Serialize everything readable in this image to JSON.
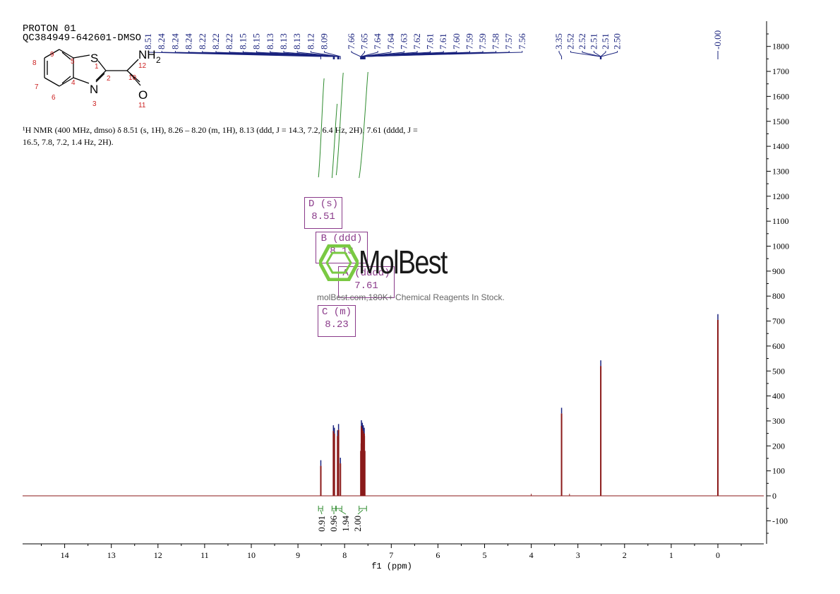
{
  "header": {
    "line1": "PROTON 01",
    "line2": "QC384949-642601-DMSO"
  },
  "description": {
    "text": "¹H NMR (400 MHz, dmso) δ 8.51 (s, 1H), 8.26 – 8.20 (m, 1H), 8.13 (ddd, J = 14.3, 7.2, 6.4 Hz, 2H), 7.61 (dddd, J = 16.5, 7.8, 7.2, 1.4 Hz, 2H)."
  },
  "molecule": {
    "atoms": [
      "S",
      "N",
      "NH",
      "2",
      "O"
    ],
    "numbers": [
      "1",
      "2",
      "3",
      "4",
      "5",
      "6",
      "7",
      "8",
      "9",
      "10",
      "11",
      "12"
    ]
  },
  "peak_boxes": [
    {
      "label": "D (s)",
      "value": "8.51"
    },
    {
      "label": "B (ddd)",
      "value": "8.13"
    },
    {
      "label": "A (dddd)",
      "value": "7.61"
    },
    {
      "label": "C (m)",
      "value": "8.23"
    }
  ],
  "watermark": {
    "brand": "MolBest",
    "tagline": "molBest.com,180K+ Chemical Reagents In Stock."
  },
  "colors": {
    "spectrum": "#8b1a1a",
    "peak_labels": "#1a237e",
    "integrals": "#2e8b2e",
    "boxes": "#8a3a8a",
    "watermark": "#1e7b3a",
    "atom_numbers": "#cc2222"
  },
  "chart_data": {
    "type": "line",
    "xlabel": "f1 (ppm)",
    "x_reversed": true,
    "xlim": [
      15,
      -1
    ],
    "ylim": [
      -150,
      1900
    ],
    "x_ticks": [
      "14",
      "13",
      "12",
      "11",
      "10",
      "9",
      "8",
      "7",
      "6",
      "5",
      "4",
      "3",
      "2",
      "1",
      "0"
    ],
    "y_ticks": [
      "-100",
      "0",
      "100",
      "200",
      "300",
      "400",
      "500",
      "600",
      "700",
      "800",
      "900",
      "1000",
      "1100",
      "1200",
      "1300",
      "1400",
      "1500",
      "1600",
      "1700",
      "1800"
    ],
    "peak_labels": [
      "8.51",
      "8.24",
      "8.24",
      "8.24",
      "8.22",
      "8.22",
      "8.22",
      "8.15",
      "8.15",
      "8.13",
      "8.13",
      "8.13",
      "8.12",
      "8.09",
      "7.66",
      "7.65",
      "7.64",
      "7.64",
      "7.63",
      "7.62",
      "7.61",
      "7.61",
      "7.60",
      "7.59",
      "7.59",
      "7.58",
      "7.57",
      "7.56",
      "3.35",
      "2.52",
      "2.52",
      "2.51",
      "2.51",
      "2.50",
      "-0.00"
    ],
    "peaks": [
      {
        "ppm": 8.51,
        "height": 120
      },
      {
        "ppm": 8.24,
        "height": 260
      },
      {
        "ppm": 8.22,
        "height": 250
      },
      {
        "ppm": 8.15,
        "height": 240
      },
      {
        "ppm": 8.13,
        "height": 265
      },
      {
        "ppm": 8.09,
        "height": 130
      },
      {
        "ppm": 7.64,
        "height": 280
      },
      {
        "ppm": 7.62,
        "height": 270
      },
      {
        "ppm": 7.6,
        "height": 260
      },
      {
        "ppm": 7.58,
        "height": 250
      },
      {
        "ppm": 3.35,
        "height": 330
      },
      {
        "ppm": 2.51,
        "height": 520
      },
      {
        "ppm": 0.0,
        "height": 705
      }
    ],
    "integrals": [
      {
        "from": 8.56,
        "to": 8.47,
        "value": "0.91"
      },
      {
        "from": 8.27,
        "to": 8.19,
        "value": "0.96"
      },
      {
        "from": 8.18,
        "to": 8.06,
        "value": "1.94"
      },
      {
        "from": 7.69,
        "to": 7.53,
        "value": "2.00"
      }
    ]
  }
}
